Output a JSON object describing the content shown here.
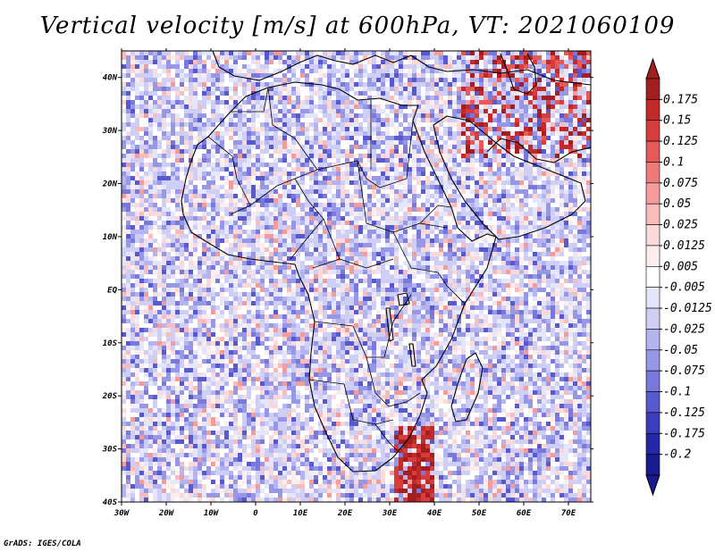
{
  "title": "Vertical velocity [m/s] at 600hPa, VT: 2021060109",
  "footer": "GrADS: IGES/COLA",
  "map": {
    "region": "Africa",
    "lon_range": [
      -30,
      75
    ],
    "lat_range": [
      -40,
      45
    ],
    "x_ticks": [
      {
        "lon": -30,
        "label": "30W"
      },
      {
        "lon": -20,
        "label": "20W"
      },
      {
        "lon": -10,
        "label": "10W"
      },
      {
        "lon": 0,
        "label": "0"
      },
      {
        "lon": 10,
        "label": "10E"
      },
      {
        "lon": 20,
        "label": "20E"
      },
      {
        "lon": 30,
        "label": "30E"
      },
      {
        "lon": 40,
        "label": "40E"
      },
      {
        "lon": 50,
        "label": "50E"
      },
      {
        "lon": 60,
        "label": "60E"
      },
      {
        "lon": 70,
        "label": "70E"
      }
    ],
    "y_ticks": [
      {
        "lat": 40,
        "label": "40N"
      },
      {
        "lat": 30,
        "label": "30N"
      },
      {
        "lat": 20,
        "label": "20N"
      },
      {
        "lat": 10,
        "label": "10N"
      },
      {
        "lat": 0,
        "label": "EQ"
      },
      {
        "lat": -10,
        "label": "10S"
      },
      {
        "lat": -20,
        "label": "20S"
      },
      {
        "lat": -30,
        "label": "30S"
      },
      {
        "lat": -40,
        "label": "40S"
      }
    ]
  },
  "colorbar": {
    "levels": [
      {
        "label": "0.175",
        "color": "#a31f1f"
      },
      {
        "label": "0.15",
        "color": "#c22a2a"
      },
      {
        "label": "0.125",
        "color": "#d83c3c"
      },
      {
        "label": "0.1",
        "color": "#e55959"
      },
      {
        "label": "0.075",
        "color": "#ee7a7a"
      },
      {
        "label": "0.05",
        "color": "#f49c9c"
      },
      {
        "label": "0.025",
        "color": "#f8bcbc"
      },
      {
        "label": "0.0125",
        "color": "#fbd9d9"
      },
      {
        "label": "0.005",
        "color": "#fdeeee"
      },
      {
        "label": "-0.005",
        "color": "#ffffff"
      },
      {
        "label": "-0.0125",
        "color": "#e6e6fb"
      },
      {
        "label": "-0.025",
        "color": "#cfcff6"
      },
      {
        "label": "-0.05",
        "color": "#b4b4f0"
      },
      {
        "label": "-0.075",
        "color": "#9797e8"
      },
      {
        "label": "-0.1",
        "color": "#7878dd"
      },
      {
        "label": "-0.125",
        "color": "#5858cf"
      },
      {
        "label": "-0.175",
        "color": "#3c3cbd"
      },
      {
        "label": "-0.2",
        "color": "#2626a8"
      },
      {
        "label": "",
        "color": "#1a1a8f"
      }
    ],
    "top_arrow_color": "#a31f1f",
    "bottom_arrow_color": "#1a1a8f"
  },
  "colors": {
    "background_field": "#ecebfb",
    "coast": "#000000"
  }
}
